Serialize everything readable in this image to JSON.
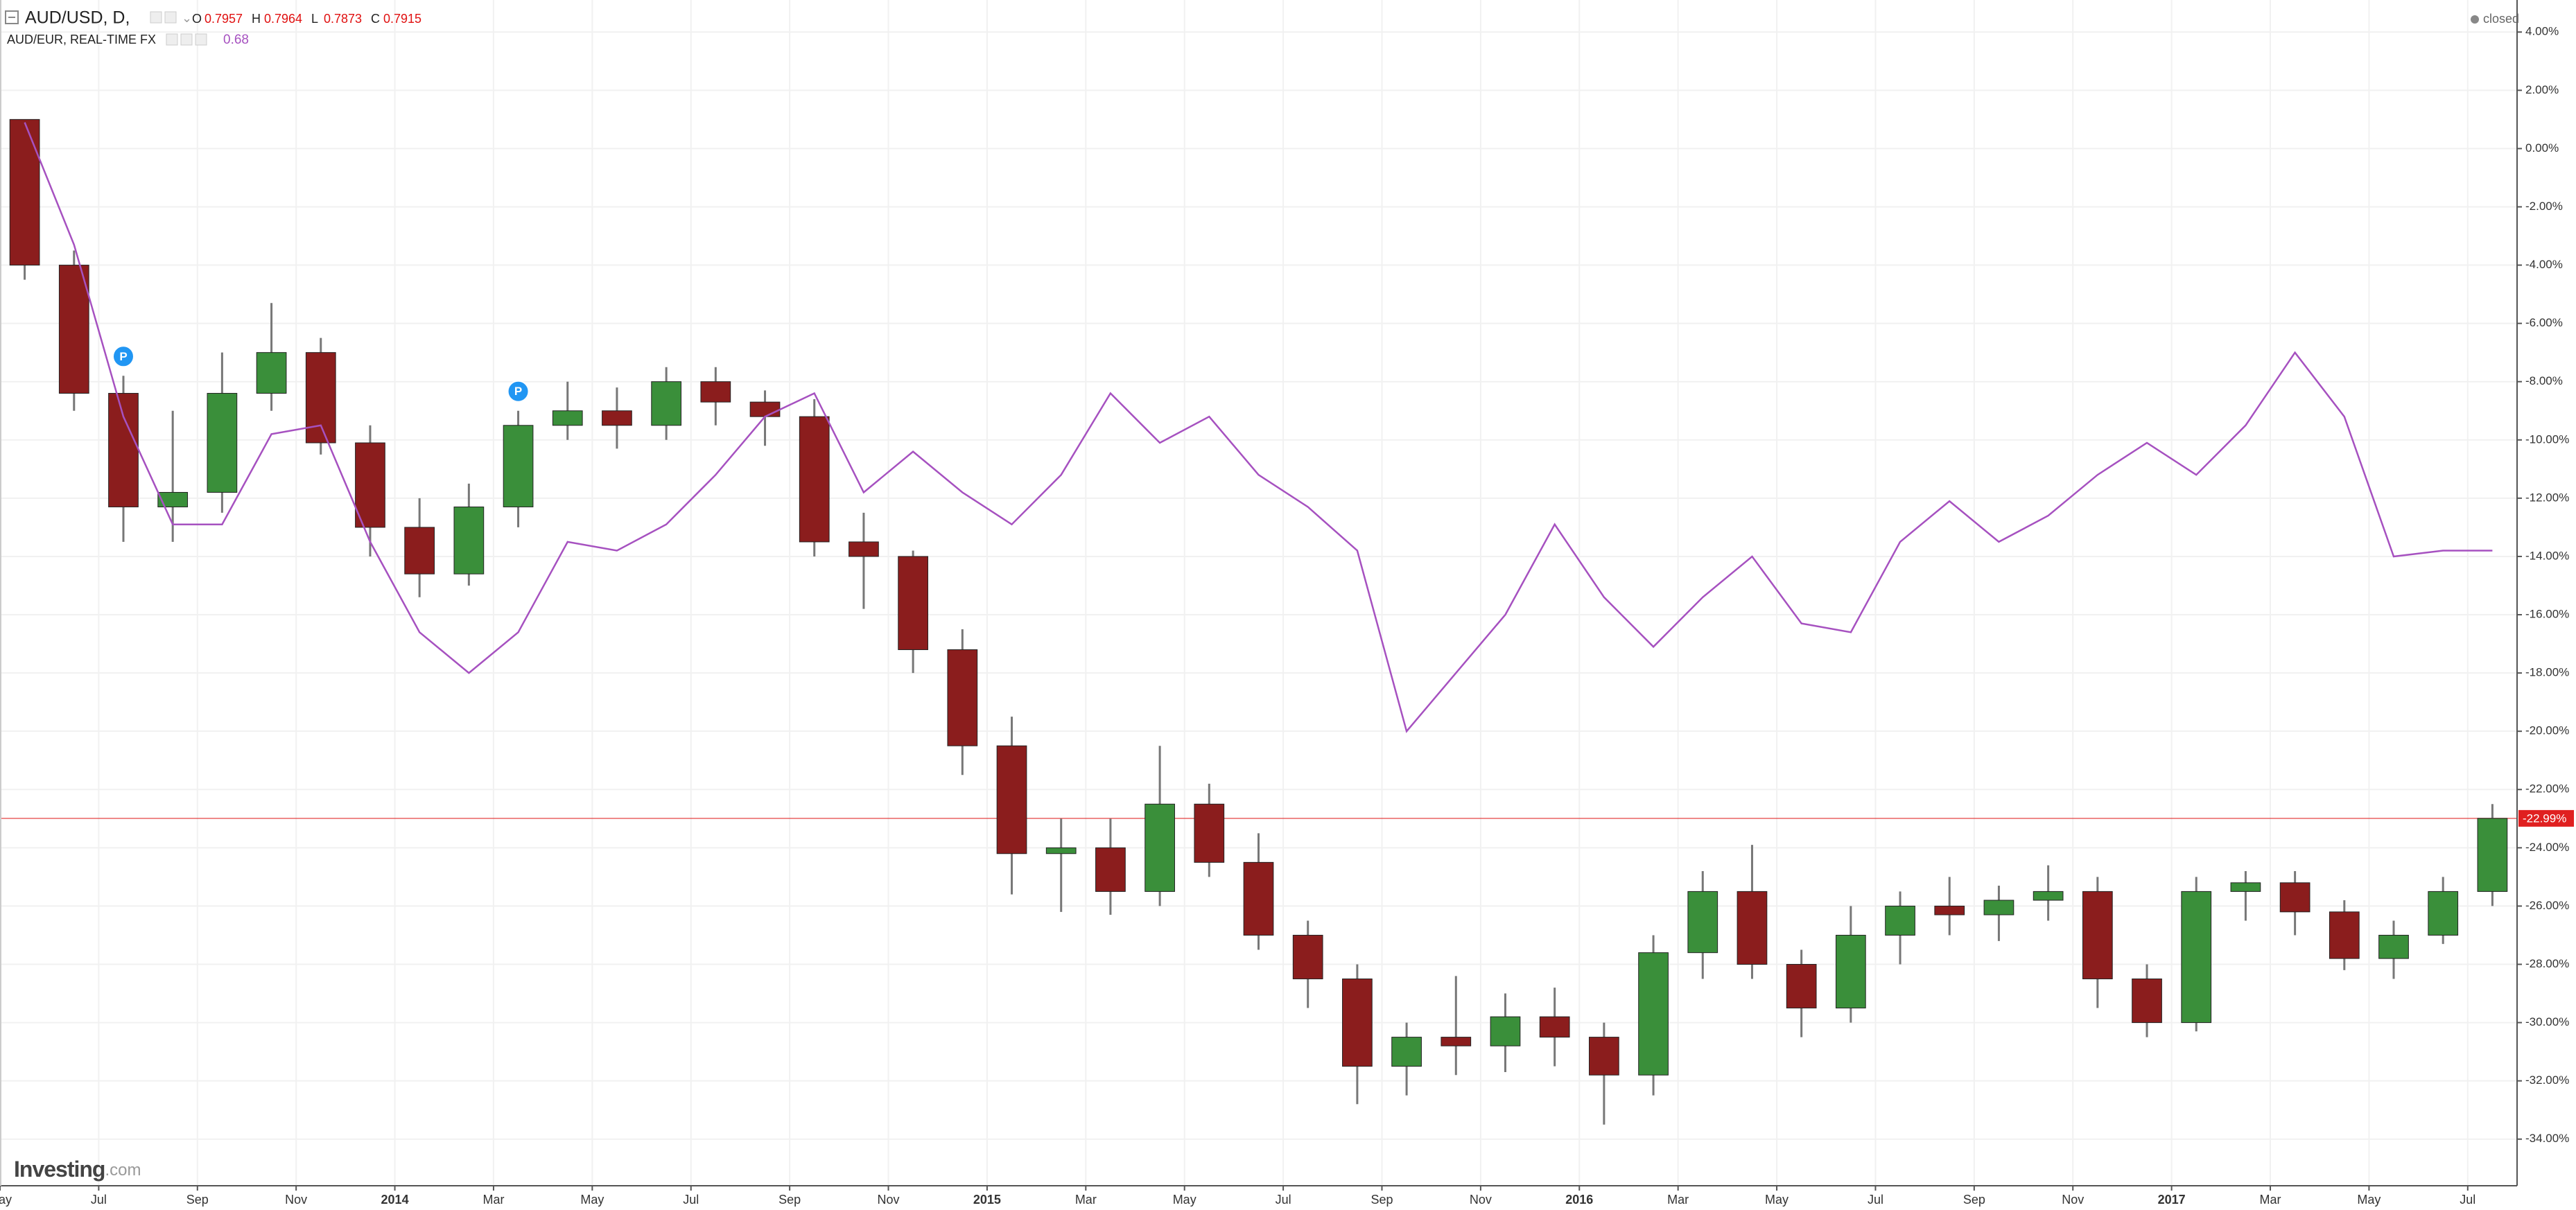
{
  "chart_data": {
    "type": "candlestick",
    "header": {
      "title": "AUD/USD, D,",
      "ohlc_labels": [
        "O",
        "H",
        "L",
        "C"
      ],
      "ohlc_values": [
        0.7957,
        0.7964,
        0.7873,
        0.7915
      ],
      "status": "closed"
    },
    "brand": [
      "Investing",
      ".com"
    ],
    "x": [
      "2013-05",
      "2013-06",
      "2013-07",
      "2013-08",
      "2013-09",
      "2013-10",
      "2013-11",
      "2013-12",
      "2014-01",
      "2014-02",
      "2014-03",
      "2014-04",
      "2014-05",
      "2014-06",
      "2014-07",
      "2014-08",
      "2014-09",
      "2014-10",
      "2014-11",
      "2014-12",
      "2015-01",
      "2015-02",
      "2015-03",
      "2015-04",
      "2015-05",
      "2015-06",
      "2015-07",
      "2015-08",
      "2015-09",
      "2015-10",
      "2015-11",
      "2015-12",
      "2016-01",
      "2016-02",
      "2016-03",
      "2016-04",
      "2016-05",
      "2016-06",
      "2016-07",
      "2016-08",
      "2016-09",
      "2016-10",
      "2016-11",
      "2016-12",
      "2017-01",
      "2017-02",
      "2017-03",
      "2017-04",
      "2017-05",
      "2017-06",
      "2017-07"
    ],
    "series": [
      {
        "name": "AUD/USD, D,",
        "type": "candlestick",
        "up_color": "#3a8f3a",
        "down_color": "#8b1d1d",
        "open": [
          1.0,
          -4.0,
          -8.4,
          -12.3,
          -11.8,
          -8.4,
          -7.0,
          -10.1,
          -13.0,
          -14.6,
          -12.3,
          -9.5,
          -9.0,
          -9.5,
          -8.0,
          -8.7,
          -9.2,
          -13.5,
          -14.0,
          -17.2,
          -20.5,
          -24.2,
          -24.0,
          -25.5,
          -22.5,
          -24.5,
          -27.0,
          -28.5,
          -31.5,
          -30.5,
          -30.8,
          -29.8,
          -30.5,
          -31.8,
          -27.6,
          -25.5,
          -28.0,
          -29.5,
          -27.0,
          -26.0,
          -26.3,
          -25.8,
          -25.5,
          -28.5,
          -30.0,
          -25.5,
          -25.2,
          -26.2,
          -27.8,
          -27.0,
          -25.5
        ],
        "high": [
          1.0,
          -3.5,
          -7.8,
          -9.0,
          -7.0,
          -5.3,
          -6.5,
          -9.5,
          -12.0,
          -11.5,
          -9.0,
          -8.0,
          -8.2,
          -7.5,
          -7.5,
          -8.3,
          -8.6,
          -12.5,
          -13.8,
          -16.5,
          -19.5,
          -23.0,
          -23.0,
          -20.5,
          -21.8,
          -23.5,
          -26.5,
          -28.0,
          -30.0,
          -28.4,
          -29.0,
          -28.8,
          -30.0,
          -27.0,
          -24.8,
          -23.9,
          -27.5,
          -26.0,
          -25.5,
          -25.0,
          -25.3,
          -24.6,
          -25.0,
          -28.0,
          -25.0,
          -24.8,
          -24.8,
          -25.8,
          -26.5,
          -25.0,
          -22.5
        ],
        "low": [
          -4.5,
          -9.0,
          -13.5,
          -13.5,
          -12.5,
          -9.0,
          -10.5,
          -14.0,
          -15.4,
          -15.0,
          -13.0,
          -10.0,
          -10.3,
          -10.0,
          -9.5,
          -10.2,
          -14.0,
          -15.8,
          -18.0,
          -21.5,
          -25.6,
          -26.2,
          -26.3,
          -26.0,
          -25.0,
          -27.5,
          -29.5,
          -32.8,
          -32.5,
          -31.8,
          -31.7,
          -31.5,
          -33.5,
          -32.5,
          -28.5,
          -28.5,
          -30.5,
          -30.0,
          -28.0,
          -27.0,
          -27.2,
          -26.5,
          -29.5,
          -30.5,
          -30.3,
          -26.5,
          -27.0,
          -28.2,
          -28.5,
          -27.3,
          -26.0
        ],
        "close": [
          -4.0,
          -8.4,
          -12.3,
          -11.8,
          -8.4,
          -7.0,
          -10.1,
          -13.0,
          -14.6,
          -12.3,
          -9.5,
          -9.0,
          -9.5,
          -8.0,
          -8.7,
          -9.2,
          -13.5,
          -14.0,
          -17.2,
          -20.5,
          -24.2,
          -24.0,
          -25.5,
          -22.5,
          -24.5,
          -27.0,
          -28.5,
          -31.5,
          -30.5,
          -30.8,
          -29.8,
          -30.5,
          -31.8,
          -27.6,
          -25.5,
          -28.0,
          -29.5,
          -27.0,
          -26.0,
          -26.3,
          -25.8,
          -25.5,
          -28.5,
          -30.0,
          -25.5,
          -25.2,
          -26.2,
          -27.8,
          -27.0,
          -25.5,
          -22.99
        ]
      },
      {
        "name": "AUD/EUR, REAL-TIME FX",
        "type": "line",
        "color": "#a651c0",
        "last_value": 0.68,
        "values": [
          0.9,
          -3.3,
          -9.2,
          -12.9,
          -12.9,
          -9.8,
          -9.5,
          -13.5,
          -16.6,
          -18.0,
          -16.6,
          -13.5,
          -13.8,
          -12.9,
          -11.2,
          -9.2,
          -8.4,
          -11.8,
          -10.4,
          -11.8,
          -12.9,
          -11.2,
          -8.4,
          -10.1,
          -9.2,
          -11.2,
          -12.3,
          -13.8,
          -20.0,
          -18.0,
          -16.0,
          -12.9,
          -15.4,
          -17.1,
          -15.4,
          -14.0,
          -16.3,
          -16.6,
          -13.5,
          -12.1,
          -13.5,
          -12.6,
          -11.2,
          -10.1,
          -11.2,
          -9.5,
          -7.0,
          -9.2,
          -14.0,
          -13.8,
          -13.8
        ]
      }
    ],
    "events": [
      {
        "label": "P",
        "x": "2013-07"
      },
      {
        "label": "P",
        "x": "2014-03"
      }
    ],
    "price_line": {
      "value": -22.99,
      "label": "-22.99%",
      "color": "#e02020"
    },
    "xlim": [
      "2013-05",
      "2017-08"
    ],
    "xticks": [
      {
        "value": "2013-05",
        "label": "May"
      },
      {
        "value": "2013-07",
        "label": "Jul"
      },
      {
        "value": "2013-09",
        "label": "Sep"
      },
      {
        "value": "2013-11",
        "label": "Nov"
      },
      {
        "value": "2014-01",
        "label": "2014"
      },
      {
        "value": "2014-03",
        "label": "Mar"
      },
      {
        "value": "2014-05",
        "label": "May"
      },
      {
        "value": "2014-07",
        "label": "Jul"
      },
      {
        "value": "2014-09",
        "label": "Sep"
      },
      {
        "value": "2014-11",
        "label": "Nov"
      },
      {
        "value": "2015-01",
        "label": "2015"
      },
      {
        "value": "2015-03",
        "label": "Mar"
      },
      {
        "value": "2015-05",
        "label": "May"
      },
      {
        "value": "2015-07",
        "label": "Jul"
      },
      {
        "value": "2015-09",
        "label": "Sep"
      },
      {
        "value": "2015-11",
        "label": "Nov"
      },
      {
        "value": "2016-01",
        "label": "2016"
      },
      {
        "value": "2016-03",
        "label": "Mar"
      },
      {
        "value": "2016-05",
        "label": "May"
      },
      {
        "value": "2016-07",
        "label": "Jul"
      },
      {
        "value": "2016-09",
        "label": "Sep"
      },
      {
        "value": "2016-11",
        "label": "Nov"
      },
      {
        "value": "2017-01",
        "label": "2017"
      },
      {
        "value": "2017-03",
        "label": "Mar"
      },
      {
        "value": "2017-05",
        "label": "May"
      },
      {
        "value": "2017-07",
        "label": "Jul"
      }
    ],
    "ylim": [
      -35.6,
      5.1
    ],
    "yticks": [
      {
        "value": 4,
        "label": "4.00%"
      },
      {
        "value": 2,
        "label": "2.00%"
      },
      {
        "value": 0,
        "label": "0.00%"
      },
      {
        "value": -2,
        "label": "-2.00%"
      },
      {
        "value": -4,
        "label": "-4.00%"
      },
      {
        "value": -6,
        "label": "-6.00%"
      },
      {
        "value": -8,
        "label": "-8.00%"
      },
      {
        "value": -10,
        "label": "-10.00%"
      },
      {
        "value": -12,
        "label": "-12.00%"
      },
      {
        "value": -14,
        "label": "-14.00%"
      },
      {
        "value": -16,
        "label": "-16.00%"
      },
      {
        "value": -18,
        "label": "-18.00%"
      },
      {
        "value": -20,
        "label": "-20.00%"
      },
      {
        "value": -22,
        "label": "-22.00%"
      },
      {
        "value": -24,
        "label": "-24.00%"
      },
      {
        "value": -26,
        "label": "-26.00%"
      },
      {
        "value": -28,
        "label": "-28.00%"
      },
      {
        "value": -30,
        "label": "-30.00%"
      },
      {
        "value": -32,
        "label": "-32.00%"
      },
      {
        "value": -34,
        "label": "-34.00%"
      }
    ],
    "grid": true
  }
}
